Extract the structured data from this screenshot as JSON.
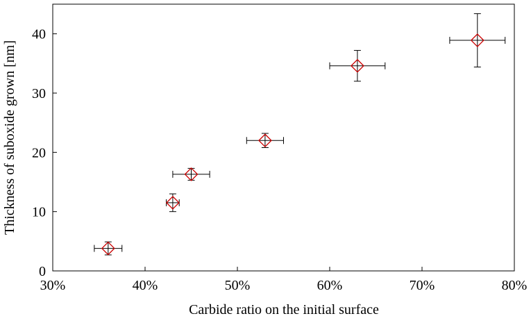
{
  "chart_data": {
    "type": "scatter",
    "title": "",
    "xlabel": "Carbide ratio on the initial surface",
    "ylabel": "Thickness of suboxide grown [nm]",
    "xlim": [
      0.3,
      0.8
    ],
    "ylim": [
      0,
      45
    ],
    "xticks": [
      0.3,
      0.4,
      0.5,
      0.6,
      0.7,
      0.8
    ],
    "xtick_labels": [
      "30%",
      "40%",
      "50%",
      "60%",
      "70%",
      "80%"
    ],
    "yticks": [
      0,
      10,
      20,
      30,
      40
    ],
    "ytick_labels": [
      "0",
      "10",
      "20",
      "30",
      "40"
    ],
    "grid": false,
    "legend": "none",
    "marker": "diamond",
    "marker_color": "#cc0000",
    "errorbar_color": "#000000",
    "points": [
      {
        "x": 0.36,
        "y": 3.8,
        "xerr": 0.015,
        "yerr": 1.1
      },
      {
        "x": 0.43,
        "y": 11.5,
        "xerr": 0.007,
        "yerr": 1.5
      },
      {
        "x": 0.45,
        "y": 16.3,
        "xerr": 0.02,
        "yerr": 1.0
      },
      {
        "x": 0.53,
        "y": 22.0,
        "xerr": 0.02,
        "yerr": 1.2
      },
      {
        "x": 0.63,
        "y": 34.6,
        "xerr": 0.03,
        "yerr": 2.6
      },
      {
        "x": 0.76,
        "y": 38.9,
        "xerr": 0.03,
        "yerr": 4.5
      }
    ]
  }
}
